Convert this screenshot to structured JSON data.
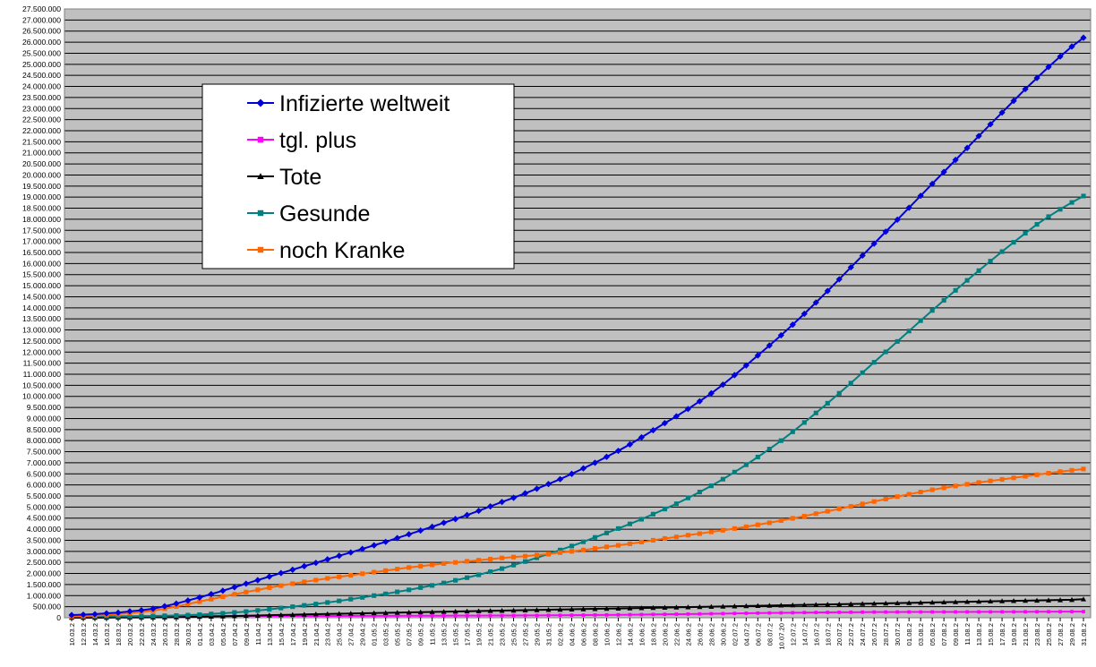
{
  "chart_data": {
    "type": "line",
    "ylim": [
      0,
      27500000
    ],
    "grid": true,
    "legend_position": "top-left",
    "plot_background": "#c0c0c0",
    "gridline_color": "#000000",
    "y_ticks": [
      {
        "value": 0,
        "label": "0"
      },
      {
        "value": 500000,
        "label": "500.000"
      },
      {
        "value": 1000000,
        "label": "1.000.000"
      },
      {
        "value": 1500000,
        "label": "1.500.000"
      },
      {
        "value": 2000000,
        "label": "2.000.000"
      },
      {
        "value": 2500000,
        "label": "2.500.000"
      },
      {
        "value": 3000000,
        "label": "3.000.000"
      },
      {
        "value": 3500000,
        "label": "3.500.000"
      },
      {
        "value": 4000000,
        "label": "4.000.000"
      },
      {
        "value": 4500000,
        "label": "4.500.000"
      },
      {
        "value": 5000000,
        "label": "5.000.000"
      },
      {
        "value": 5500000,
        "label": "5.500.000"
      },
      {
        "value": 6000000,
        "label": "6.000.000"
      },
      {
        "value": 6500000,
        "label": "6.500.000"
      },
      {
        "value": 7000000,
        "label": "7.000.000"
      },
      {
        "value": 7500000,
        "label": "7.500.000"
      },
      {
        "value": 8000000,
        "label": "8.000.000"
      },
      {
        "value": 8500000,
        "label": "8.500.000"
      },
      {
        "value": 9000000,
        "label": "9.000.000"
      },
      {
        "value": 9500000,
        "label": "9.500.000"
      },
      {
        "value": 10000000,
        "label": "10.000.000"
      },
      {
        "value": 10500000,
        "label": "10.500.000"
      },
      {
        "value": 11000000,
        "label": "11.000.000"
      },
      {
        "value": 11500000,
        "label": "11.500.000"
      },
      {
        "value": 12000000,
        "label": "12.000.000"
      },
      {
        "value": 12500000,
        "label": "12.500.000"
      },
      {
        "value": 13000000,
        "label": "13.000.000"
      },
      {
        "value": 13500000,
        "label": "13.500.000"
      },
      {
        "value": 14000000,
        "label": "14.000.000"
      },
      {
        "value": 14500000,
        "label": "14.500.000"
      },
      {
        "value": 15000000,
        "label": "15.000.000"
      },
      {
        "value": 15500000,
        "label": "15.500.000"
      },
      {
        "value": 16000000,
        "label": "16.000.000"
      },
      {
        "value": 16500000,
        "label": "16.500.000"
      },
      {
        "value": 17000000,
        "label": "17.000.000"
      },
      {
        "value": 17500000,
        "label": "17.500.000"
      },
      {
        "value": 18000000,
        "label": "18.000.000"
      },
      {
        "value": 18500000,
        "label": "18.500.000"
      },
      {
        "value": 19000000,
        "label": "19.000.000"
      },
      {
        "value": 19500000,
        "label": "19.500.000"
      },
      {
        "value": 20000000,
        "label": "20.000.000"
      },
      {
        "value": 20500000,
        "label": "20.500.000"
      },
      {
        "value": 21000000,
        "label": "21.000.000"
      },
      {
        "value": 21500000,
        "label": "21.500.000"
      },
      {
        "value": 22000000,
        "label": "22.000.000"
      },
      {
        "value": 22500000,
        "label": "22.500.000"
      },
      {
        "value": 23000000,
        "label": "23.000.000"
      },
      {
        "value": 23500000,
        "label": "23.500.000"
      },
      {
        "value": 24000000,
        "label": "24.000.000"
      },
      {
        "value": 24500000,
        "label": "24.500.000"
      },
      {
        "value": 25000000,
        "label": "25.000.000"
      },
      {
        "value": 25500000,
        "label": "25.500.000"
      },
      {
        "value": 26000000,
        "label": "26.000.000"
      },
      {
        "value": 26500000,
        "label": "26.500.000"
      },
      {
        "value": 27000000,
        "label": "27.000.000"
      },
      {
        "value": 27500000,
        "label": "27.500.000"
      }
    ],
    "categories": [
      "10.03.2",
      "12.03.2",
      "14.03.2",
      "16.03.2",
      "18.03.2",
      "20.03.2",
      "22.03.2",
      "24.03.2",
      "26.03.2",
      "28.03.2",
      "30.03.2",
      "01.04.2",
      "03.04.2",
      "05.04.2",
      "07.04.2",
      "09.04.2",
      "11.04.2",
      "13.04.2",
      "15.04.2",
      "17.04.2",
      "19.04.2",
      "21.04.2",
      "23.04.2",
      "25.04.2",
      "27.04.2",
      "29.04.2",
      "01.05.2",
      "03.05.2",
      "05.05.2",
      "07.05.2",
      "09.05.2",
      "11.05.2",
      "13.05.2",
      "15.05.2",
      "17.05.2",
      "19.05.2",
      "21.05.2",
      "23.05.2",
      "25.05.2",
      "27.05.2",
      "29.05.2",
      "31.05.2",
      "02.06.2",
      "04.06.2",
      "06.06.2",
      "08.06.2",
      "10.06.2",
      "12.06.2",
      "14.06.2",
      "16.06.2",
      "18.06.2",
      "20.06.2",
      "22.06.2",
      "24.06.2",
      "26.06.2",
      "28.06.2",
      "30.06.2",
      "02.07.2",
      "04.07.2",
      "06.07.2",
      "08.07.2",
      "10.07.20",
      "12.07.2",
      "14.07.2",
      "16.07.2",
      "18.07.2",
      "20.07.2",
      "22.07.2",
      "24.07.2",
      "26.07.2",
      "28.07.2",
      "30.07.2",
      "01.08.2",
      "03.08.2",
      "05.08.2",
      "07.08.2",
      "09.08.2",
      "11.08.2",
      "13.08.2",
      "15.08.2",
      "17.08.2",
      "19.08.2",
      "21.08.2",
      "23.08.2",
      "25.08.2",
      "27.08.2",
      "29.08.2",
      "31.08.2"
    ],
    "series": [
      {
        "name": "Infizierte weltweit",
        "color": "#0000dd",
        "marker": "diamond",
        "values": [
          120000,
          140000,
          160000,
          200000,
          230000,
          290000,
          340000,
          410000,
          520000,
          640000,
          780000,
          920000,
          1070000,
          1220000,
          1380000,
          1540000,
          1700000,
          1860000,
          2020000,
          2170000,
          2330000,
          2480000,
          2640000,
          2800000,
          2950000,
          3110000,
          3270000,
          3430000,
          3600000,
          3770000,
          3940000,
          4110000,
          4290000,
          4460000,
          4640000,
          4830000,
          5030000,
          5230000,
          5420000,
          5620000,
          5830000,
          6040000,
          6260000,
          6500000,
          6750000,
          7000000,
          7270000,
          7540000,
          7830000,
          8150000,
          8470000,
          8790000,
          9100000,
          9430000,
          9780000,
          10140000,
          10530000,
          10960000,
          11400000,
          11850000,
          12300000,
          12760000,
          13240000,
          13730000,
          14240000,
          14760000,
          15290000,
          15830000,
          16360000,
          16900000,
          17440000,
          17980000,
          18520000,
          19060000,
          19600000,
          20140000,
          20680000,
          21220000,
          21760000,
          22290000,
          22820000,
          23350000,
          23880000,
          24380000,
          24880000,
          25350000,
          25800000,
          26200000
        ]
      },
      {
        "name": "tgl. plus",
        "color": "#ff00ff",
        "marker": "square",
        "values": [
          5000,
          7000,
          10000,
          14000,
          20000,
          28000,
          38000,
          48000,
          58000,
          70000,
          78000,
          80000,
          80000,
          82000,
          84000,
          82000,
          80000,
          80000,
          82000,
          82000,
          82000,
          80000,
          80000,
          82000,
          84000,
          86000,
          86000,
          86000,
          88000,
          90000,
          90000,
          92000,
          92000,
          94000,
          96000,
          98000,
          100000,
          100000,
          102000,
          104000,
          106000,
          110000,
          112000,
          116000,
          120000,
          124000,
          128000,
          132000,
          138000,
          144000,
          150000,
          156000,
          160000,
          166000,
          172000,
          180000,
          188000,
          196000,
          204000,
          210000,
          216000,
          222000,
          228000,
          234000,
          238000,
          242000,
          246000,
          250000,
          254000,
          256000,
          258000,
          260000,
          262000,
          262000,
          264000,
          264000,
          264000,
          265000,
          266000,
          266000,
          268000,
          268000,
          270000,
          272000,
          274000,
          276000,
          278000,
          280000
        ]
      },
      {
        "name": "Tote",
        "color": "#000000",
        "marker": "triangle",
        "values": [
          4000,
          5000,
          6000,
          7000,
          9000,
          11000,
          14000,
          18000,
          22000,
          28000,
          36000,
          45000,
          55000,
          66000,
          78000,
          90000,
          102000,
          114000,
          126000,
          138000,
          150000,
          162000,
          172000,
          182000,
          192000,
          202000,
          212000,
          222000,
          232000,
          242000,
          252000,
          262000,
          272000,
          282000,
          292000,
          302000,
          312000,
          322000,
          332000,
          342000,
          352000,
          362000,
          372000,
          382000,
          392000,
          402000,
          412000,
          422000,
          432000,
          442000,
          452000,
          462000,
          472000,
          482000,
          492000,
          502000,
          512000,
          522000,
          532000,
          542000,
          552000,
          562000,
          572000,
          582000,
          592000,
          602000,
          612000,
          622000,
          632000,
          642000,
          652000,
          662000,
          672000,
          682000,
          692000,
          702000,
          712000,
          722000,
          732000,
          742000,
          752000,
          762000,
          772000,
          782000,
          792000,
          802000,
          812000,
          840000
        ]
      },
      {
        "name": "Gesunde",
        "color": "#008080",
        "marker": "square",
        "values": [
          60000,
          62000,
          64000,
          66000,
          68000,
          72000,
          76000,
          80000,
          90000,
          100000,
          120000,
          140000,
          170000,
          200000,
          240000,
          280000,
          330000,
          380000,
          440000,
          500000,
          560000,
          620000,
          690000,
          760000,
          840000,
          920000,
          1000000,
          1080000,
          1170000,
          1260000,
          1360000,
          1460000,
          1570000,
          1690000,
          1810000,
          1940000,
          2080000,
          2220000,
          2380000,
          2540000,
          2710000,
          2880000,
          3060000,
          3240000,
          3430000,
          3630000,
          3830000,
          4030000,
          4240000,
          4450000,
          4680000,
          4910000,
          5150000,
          5410000,
          5680000,
          5960000,
          6260000,
          6580000,
          6910000,
          7260000,
          7620000,
          8000000,
          8400000,
          8820000,
          9250000,
          9690000,
          10140000,
          10600000,
          11070000,
          11540000,
          12010000,
          12480000,
          12950000,
          13420000,
          13880000,
          14340000,
          14790000,
          15240000,
          15680000,
          16110000,
          16540000,
          16960000,
          17370000,
          17770000,
          18120000,
          18450000,
          18760000,
          19050000
        ]
      },
      {
        "name": "noch Kranke",
        "color": "#ff6600",
        "marker": "square",
        "values": [
          60000,
          75000,
          95000,
          130000,
          160000,
          210000,
          260000,
          320000,
          410000,
          510000,
          620000,
          730000,
          840000,
          950000,
          1060000,
          1160000,
          1260000,
          1360000,
          1450000,
          1540000,
          1620000,
          1700000,
          1780000,
          1850000,
          1920000,
          1990000,
          2060000,
          2130000,
          2200000,
          2270000,
          2330000,
          2390000,
          2450000,
          2500000,
          2550000,
          2600000,
          2650000,
          2700000,
          2740000,
          2780000,
          2830000,
          2880000,
          2940000,
          3000000,
          3060000,
          3130000,
          3200000,
          3270000,
          3340000,
          3420000,
          3500000,
          3580000,
          3650000,
          3730000,
          3800000,
          3880000,
          3950000,
          4030000,
          4110000,
          4200000,
          4290000,
          4390000,
          4490000,
          4590000,
          4700000,
          4810000,
          4920000,
          5030000,
          5140000,
          5250000,
          5360000,
          5470000,
          5580000,
          5680000,
          5780000,
          5870000,
          5950000,
          6030000,
          6110000,
          6180000,
          6250000,
          6320000,
          6390000,
          6460000,
          6530000,
          6600000,
          6660000,
          6720000
        ]
      }
    ]
  }
}
